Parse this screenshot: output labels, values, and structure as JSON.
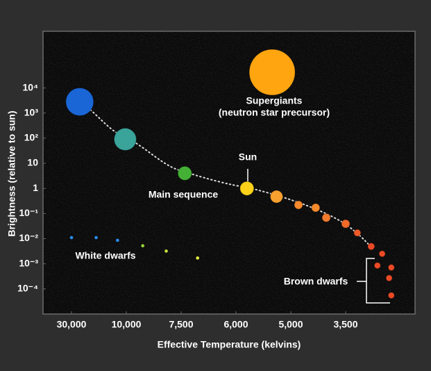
{
  "chart_data": {
    "type": "scatter",
    "xlabel": "Effective Temperature (kelvins)",
    "ylabel": "Brightness (relative to sun)",
    "xlim": [
      40000,
      1600
    ],
    "xticks": [
      {
        "value": 30000,
        "label": "30,000"
      },
      {
        "value": 10000,
        "label": "10,000"
      },
      {
        "value": 7500,
        "label": "7,500"
      },
      {
        "value": 6000,
        "label": "6,000"
      },
      {
        "value": 5000,
        "label": "5,000"
      },
      {
        "value": 3500,
        "label": "3,500"
      }
    ],
    "ylim": [
      1e-05,
      1800000
    ],
    "yscale": "log",
    "yticks": [
      {
        "value": 10000,
        "label": "10⁴"
      },
      {
        "value": 1000,
        "label": "10³"
      },
      {
        "value": 100,
        "label": "10²"
      },
      10,
      1,
      {
        "value": 0.1,
        "label": "10⁻¹"
      },
      {
        "value": 0.01,
        "label": "10⁻²"
      },
      {
        "value": 0.001,
        "label": "10⁻³"
      },
      {
        "value": 0.0001,
        "label": "10⁻⁴"
      }
    ],
    "x": [
      27000,
      10400,
      7400,
      5800,
      5260,
      4790,
      4320,
      4030,
      3500,
      3180,
      2800,
      2500,
      2630,
      2250,
      2310,
      2250,
      5340,
      30000,
      21000,
      13200,
      9250,
      8180,
      7050
    ],
    "values": [
      2800,
      90,
      4,
      1,
      0.47,
      0.22,
      0.17,
      0.068,
      0.039,
      0.017,
      0.0049,
      0.0025,
      0.00085,
      0.00071,
      0.00027,
      5.5e-05,
      42000,
      0.011,
      0.011,
      0.0086,
      0.0052,
      0.0032,
      0.0017
    ],
    "sizes": [
      20,
      16,
      10,
      10,
      9,
      6,
      6,
      6,
      6,
      5,
      5,
      4.5,
      4.5,
      4.5,
      4.5,
      4.5,
      33,
      2.5,
      2.5,
      2.5,
      2.5,
      2.5,
      2.5
    ],
    "colors": [
      "#1a66d6",
      "#3aa39a",
      "#45b036",
      "#ffd21a",
      "#f7a030",
      "#f48a2c",
      "#f48a2c",
      "#f27a2c",
      "#f06a2a",
      "#ee5a28",
      "#ea4a26",
      "#ea4a26",
      "#ea4a26",
      "#ea4a26",
      "#ea4a26",
      "#ea4a26",
      "#ffa510",
      "#2a8ef0",
      "#2a8ef0",
      "#2a8ef0",
      "#9ad83a",
      "#c6e040",
      "#e6f040"
    ],
    "annotations": [
      "Supergiants",
      "(neutron star precursor)",
      "Sun",
      "Main sequence",
      "White dwarfs",
      "Brown dwarfs"
    ]
  }
}
